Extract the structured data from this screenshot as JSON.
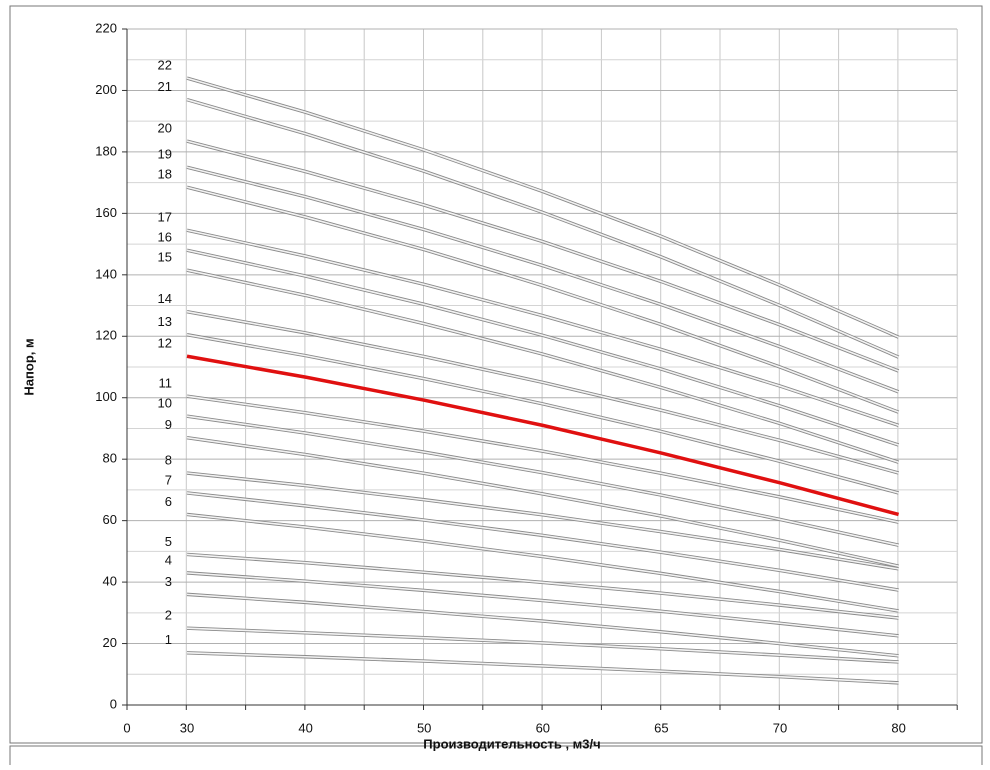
{
  "chart_data": {
    "type": "line",
    "y_label": "Напор, м",
    "x_label": "Производительность , м3/ч",
    "categories": [
      "0",
      "30",
      "40",
      "50",
      "60",
      "65",
      "70",
      "80"
    ],
    "ylim": [
      0,
      220
    ],
    "yticks": [
      0,
      20,
      40,
      60,
      80,
      100,
      120,
      140,
      160,
      180,
      200,
      220
    ],
    "grid": true,
    "series": [
      {
        "name": "1",
        "color": "#c4c4c4",
        "values": [
          null,
          17,
          15.7,
          14.3,
          12.7,
          11.0,
          9.2,
          7.2
        ]
      },
      {
        "name": "2",
        "color": "#c4c4c4",
        "values": [
          null,
          25,
          23.5,
          21.9,
          20.2,
          18.3,
          16.2,
          14
        ]
      },
      {
        "name": "3",
        "color": "#c4c4c4",
        "values": [
          null,
          36,
          33.4,
          30.4,
          27.3,
          23.8,
          20.0,
          16
        ]
      },
      {
        "name": "4",
        "color": "#c4c4c4",
        "values": [
          null,
          43,
          40.3,
          37.3,
          34.0,
          30.5,
          26.6,
          22.5
        ]
      },
      {
        "name": "5",
        "color": "#c4c4c4",
        "values": [
          null,
          49,
          46.3,
          43.2,
          39.9,
          36.4,
          32.5,
          28.3
        ]
      },
      {
        "name": "6",
        "color": "#c4c4c4",
        "values": [
          null,
          62,
          57.9,
          53.3,
          48.3,
          42.8,
          36.9,
          30.6
        ]
      },
      {
        "name": "7",
        "color": "#c4c4c4",
        "values": [
          null,
          69,
          64.8,
          60.2,
          55.2,
          49.7,
          43.8,
          37.4
        ]
      },
      {
        "name": "8",
        "color": "#c4c4c4",
        "values": [
          null,
          75.5,
          71.4,
          66.8,
          61.9,
          56.4,
          50.6,
          44.3
        ]
      },
      {
        "name": "9",
        "color": "#c4c4c4",
        "values": [
          null,
          87,
          81.5,
          75.4,
          68.7,
          61.5,
          53.6,
          45.2
        ]
      },
      {
        "name": "10",
        "color": "#c4c4c4",
        "values": [
          null,
          94,
          88.5,
          82.3,
          75.6,
          68.3,
          60.4,
          52
        ]
      },
      {
        "name": "11",
        "color": "#c4c4c4",
        "values": [
          null,
          100.5,
          95.1,
          89.1,
          82.6,
          75.4,
          67.7,
          59.5
        ]
      },
      {
        "name": "12",
        "color": "#e01010",
        "values": [
          null,
          113.5,
          106.7,
          99.2,
          91.0,
          82.0,
          72.3,
          62
        ]
      },
      {
        "name": "13",
        "color": "#c4c4c4",
        "values": [
          null,
          120.5,
          113.7,
          106.2,
          98.0,
          89.0,
          79.3,
          69
        ]
      },
      {
        "name": "14",
        "color": "#c4c4c4",
        "values": [
          null,
          128,
          121.1,
          113.4,
          105.0,
          95.9,
          86.1,
          75.5
        ]
      },
      {
        "name": "15",
        "color": "#c4c4c4",
        "values": [
          null,
          141.5,
          133.3,
          124.1,
          114.2,
          103.3,
          91.6,
          79
        ]
      },
      {
        "name": "16",
        "color": "#c4c4c4",
        "values": [
          null,
          148,
          139.6,
          130.4,
          120.3,
          109.3,
          97.3,
          84.6
        ]
      },
      {
        "name": "17",
        "color": "#c4c4c4",
        "values": [
          null,
          154.5,
          146.1,
          136.9,
          126.7,
          115.7,
          103.8,
          91
        ]
      },
      {
        "name": "18",
        "color": "#c4c4c4",
        "values": [
          null,
          168.5,
          158.8,
          148.2,
          136.5,
          123.8,
          110.0,
          95.3
        ]
      },
      {
        "name": "19",
        "color": "#c4c4c4",
        "values": [
          null,
          175,
          165.4,
          154.7,
          143.0,
          130.3,
          116.6,
          101.9
        ]
      },
      {
        "name": "20",
        "color": "#c4c4c4",
        "values": [
          null,
          183.5,
          173.6,
          162.7,
          150.8,
          137.8,
          123.7,
          108.7
        ]
      },
      {
        "name": "21",
        "color": "#c4c4c4",
        "values": [
          null,
          197,
          185.9,
          173.7,
          160.3,
          145.8,
          130.0,
          113.2
        ]
      },
      {
        "name": "22",
        "color": "#c4c4c4",
        "values": [
          null,
          204,
          192.9,
          180.6,
          167.1,
          152.5,
          136.6,
          119.7
        ]
      }
    ]
  }
}
